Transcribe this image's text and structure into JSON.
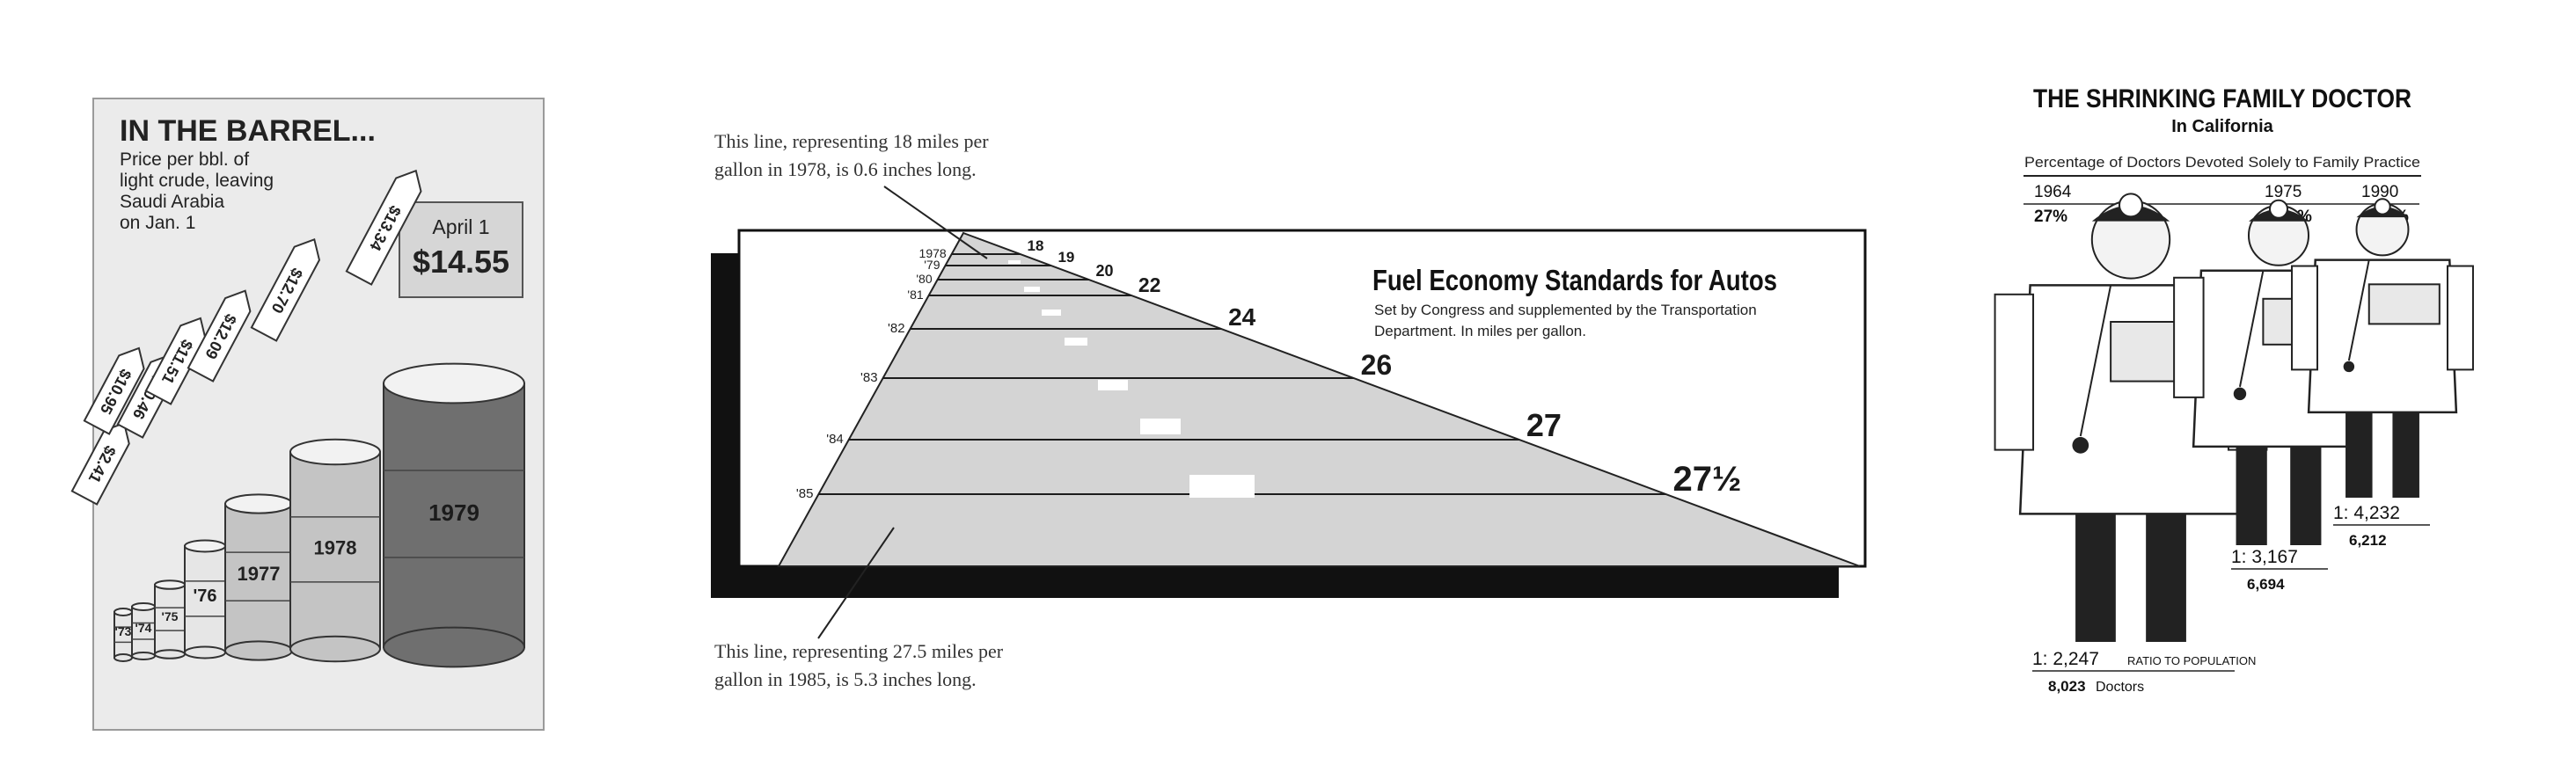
{
  "chart_data": [
    {
      "type": "bar",
      "title": "IN THE BARREL...",
      "subtitle_lines": [
        "Price per bbl. of",
        "light crude, leaving",
        "Saudi Arabia",
        "on Jan. 1"
      ],
      "callout": {
        "label": "April 1",
        "value": "$14.55"
      },
      "categories": [
        "'73",
        "'74",
        "'75",
        "'76",
        "1977",
        "1978",
        "1979"
      ],
      "value_labels": [
        "$2.41",
        "$10.95",
        "$10.46",
        "$11.51",
        "$12.09",
        "$12.70",
        "$13.34"
      ],
      "values": [
        2.41,
        10.95,
        10.46,
        11.51,
        12.09,
        12.7,
        13.34
      ],
      "unit": "$ per barrel",
      "colors": {
        "light": "#e6e6e6",
        "mid": "#c4c4c4",
        "dark": "#6f6f6f"
      }
    },
    {
      "type": "bar",
      "title": "Fuel Economy Standards for Autos",
      "subtitle_lines": [
        "Set by Congress and supplemented by the Transportation",
        "Department. In miles per gallon."
      ],
      "categories": [
        "1978",
        "'79",
        "'80",
        "'81",
        "'82",
        "'83",
        "'84",
        "'85"
      ],
      "value_labels": [
        "18",
        "19",
        "20",
        "22",
        "24",
        "26",
        "27",
        "27½"
      ],
      "values": [
        18,
        19,
        20,
        22,
        24,
        26,
        27,
        27.5
      ],
      "annotation_top": [
        "This line, representing 18 miles per",
        "gallon in 1978, is 0.6 inches long."
      ],
      "annotation_bottom": [
        "This line, representing 27.5 miles per",
        "gallon in 1985, is 5.3 inches long."
      ]
    },
    {
      "type": "bar",
      "title": "THE SHRINKING FAMILY DOCTOR",
      "subtitle": "In California",
      "header": "Percentage of Doctors Devoted Solely to Family Practice",
      "categories": [
        "1964",
        "1975",
        "1990"
      ],
      "percent_labels": [
        "27%",
        "16.0%",
        "12.0%"
      ],
      "values": [
        27,
        16.0,
        12.0
      ],
      "ratio_labels": [
        "1: 2,247",
        "1: 3,167",
        "1: 4,232"
      ],
      "ratio_caption": "RATIO TO POPULATION",
      "doctor_counts": [
        "8,023",
        "6,694",
        "6,212"
      ],
      "doctor_caption": "Doctors"
    }
  ]
}
